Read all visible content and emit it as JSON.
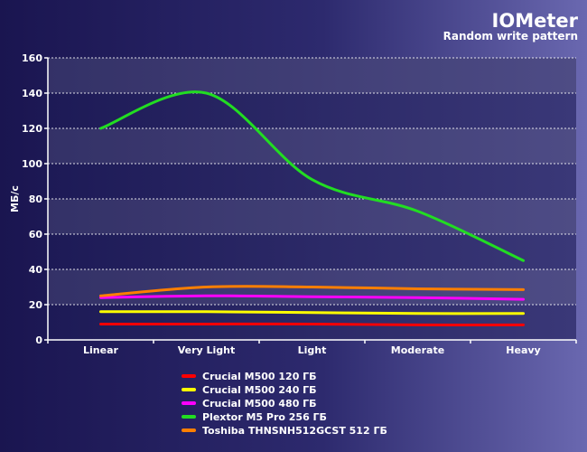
{
  "chart_data": {
    "type": "line",
    "title": "IOMeter",
    "subtitle": "Random write pattern",
    "ylabel": "МБ/с",
    "xlabel": "",
    "categories": [
      "Linear",
      "Very Light",
      "Light",
      "Moderate",
      "Heavy"
    ],
    "ylim": [
      0,
      160
    ],
    "yticks": [
      0,
      20,
      40,
      60,
      80,
      100,
      120,
      140,
      160
    ],
    "grid": true,
    "legend_position": "bottom",
    "series": [
      {
        "name": "Crucial M500 120 ГБ",
        "color": "#ff0000",
        "values": [
          9,
          9,
          9,
          8.5,
          8.5
        ]
      },
      {
        "name": "Crucial M500 240 ГБ",
        "color": "#ffff00",
        "values": [
          16,
          16,
          15.5,
          15,
          15
        ]
      },
      {
        "name": "Crucial M500 480 ГБ",
        "color": "#ff00ff",
        "values": [
          24,
          25,
          24.5,
          24,
          23
        ]
      },
      {
        "name": "Plextor M5 Pro 256 ГБ",
        "color": "#22dd22",
        "values": [
          120,
          140,
          91,
          73,
          45
        ]
      },
      {
        "name": "Toshiba THNSNH512GCST 512 ГБ",
        "color": "#ff7f00",
        "values": [
          25,
          30,
          30,
          29,
          28.5
        ]
      }
    ]
  }
}
